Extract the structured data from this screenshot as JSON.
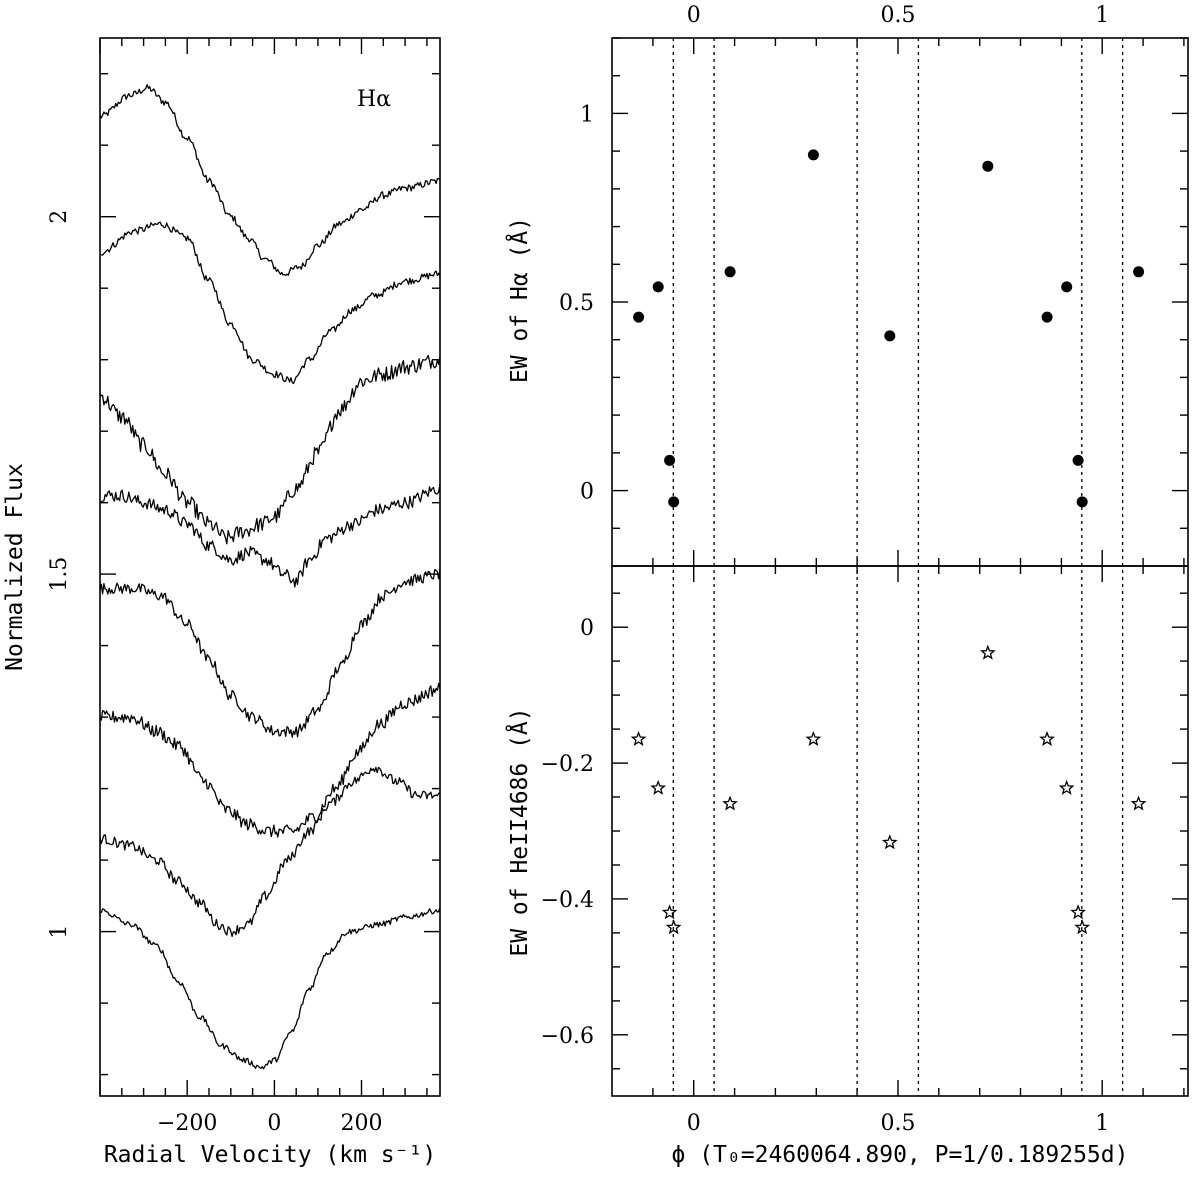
{
  "chart_data": [
    {
      "type": "line",
      "panel": "left",
      "annotation": "Hα",
      "xlabel": "Radial Velocity (km s⁻¹)",
      "ylabel": "Normalized Flux",
      "xlim": [
        -400,
        380
      ],
      "ylim": [
        0.77,
        2.25
      ],
      "xticks": [
        -200,
        0,
        200
      ],
      "yticks": [
        1,
        1.5,
        2
      ],
      "yticklabels": [
        "1",
        "1.5",
        "2"
      ],
      "series": [
        {
          "name": "spectrum 1",
          "points": [
            [
              -400,
              2.14
            ],
            [
              -330,
              2.17
            ],
            [
              -290,
              2.18
            ],
            [
              -250,
              2.16
            ],
            [
              -200,
              2.11
            ],
            [
              -150,
              2.05
            ],
            [
              -100,
              2.0
            ],
            [
              -60,
              1.97
            ],
            [
              -20,
              1.94
            ],
            [
              20,
              1.92
            ],
            [
              60,
              1.93
            ],
            [
              100,
              1.96
            ],
            [
              150,
              1.99
            ],
            [
              200,
              2.01
            ],
            [
              250,
              2.03
            ],
            [
              300,
              2.04
            ],
            [
              380,
              2.05
            ]
          ]
        },
        {
          "name": "spectrum 2",
          "points": [
            [
              -400,
              1.95
            ],
            [
              -320,
              1.98
            ],
            [
              -260,
              1.99
            ],
            [
              -200,
              1.97
            ],
            [
              -150,
              1.91
            ],
            [
              -100,
              1.85
            ],
            [
              -50,
              1.8
            ],
            [
              0,
              1.78
            ],
            [
              40,
              1.77
            ],
            [
              80,
              1.8
            ],
            [
              130,
              1.84
            ],
            [
              180,
              1.87
            ],
            [
              230,
              1.89
            ],
            [
              300,
              1.91
            ],
            [
              380,
              1.92
            ]
          ]
        },
        {
          "name": "spectrum 3",
          "points": [
            [
              -400,
              1.75
            ],
            [
              -350,
              1.72
            ],
            [
              -300,
              1.68
            ],
            [
              -250,
              1.64
            ],
            [
              -200,
              1.6
            ],
            [
              -150,
              1.57
            ],
            [
              -110,
              1.55
            ],
            [
              -70,
              1.56
            ],
            [
              -30,
              1.57
            ],
            [
              0,
              1.58
            ],
            [
              50,
              1.62
            ],
            [
              100,
              1.67
            ],
            [
              150,
              1.73
            ],
            [
              200,
              1.77
            ],
            [
              250,
              1.78
            ],
            [
              300,
              1.79
            ],
            [
              380,
              1.8
            ]
          ]
        },
        {
          "name": "spectrum 4",
          "points": [
            [
              -400,
              1.61
            ],
            [
              -350,
              1.61
            ],
            [
              -300,
              1.6
            ],
            [
              -250,
              1.59
            ],
            [
              -200,
              1.57
            ],
            [
              -150,
              1.54
            ],
            [
              -100,
              1.52
            ],
            [
              -60,
              1.53
            ],
            [
              -20,
              1.52
            ],
            [
              20,
              1.5
            ],
            [
              50,
              1.49
            ],
            [
              80,
              1.52
            ],
            [
              120,
              1.55
            ],
            [
              180,
              1.57
            ],
            [
              240,
              1.59
            ],
            [
              300,
              1.6
            ],
            [
              380,
              1.62
            ]
          ]
        },
        {
          "name": "spectrum 5",
          "points": [
            [
              -400,
              1.48
            ],
            [
              -320,
              1.48
            ],
            [
              -260,
              1.47
            ],
            [
              -200,
              1.43
            ],
            [
              -150,
              1.38
            ],
            [
              -100,
              1.33
            ],
            [
              -50,
              1.3
            ],
            [
              0,
              1.28
            ],
            [
              50,
              1.28
            ],
            [
              100,
              1.31
            ],
            [
              150,
              1.37
            ],
            [
              200,
              1.43
            ],
            [
              250,
              1.47
            ],
            [
              300,
              1.49
            ],
            [
              380,
              1.5
            ]
          ]
        },
        {
          "name": "spectrum 6",
          "points": [
            [
              -400,
              1.3
            ],
            [
              -330,
              1.3
            ],
            [
              -270,
              1.28
            ],
            [
              -220,
              1.26
            ],
            [
              -160,
              1.21
            ],
            [
              -110,
              1.17
            ],
            [
              -60,
              1.15
            ],
            [
              -10,
              1.14
            ],
            [
              40,
              1.14
            ],
            [
              90,
              1.16
            ],
            [
              140,
              1.2
            ],
            [
              190,
              1.25
            ],
            [
              240,
              1.29
            ],
            [
              300,
              1.32
            ],
            [
              380,
              1.34
            ]
          ]
        },
        {
          "name": "spectrum 7",
          "points": [
            [
              -400,
              1.13
            ],
            [
              -330,
              1.12
            ],
            [
              -270,
              1.1
            ],
            [
              -220,
              1.07
            ],
            [
              -170,
              1.04
            ],
            [
              -130,
              1.01
            ],
            [
              -100,
              1.0
            ],
            [
              -60,
              1.01
            ],
            [
              -20,
              1.05
            ],
            [
              30,
              1.1
            ],
            [
              80,
              1.14
            ],
            [
              130,
              1.18
            ],
            [
              180,
              1.21
            ],
            [
              230,
              1.23
            ],
            [
              280,
              1.21
            ],
            [
              330,
              1.19
            ],
            [
              380,
              1.19
            ]
          ]
        },
        {
          "name": "spectrum 8",
          "points": [
            [
              -400,
              1.03
            ],
            [
              -330,
              1.01
            ],
            [
              -270,
              0.98
            ],
            [
              -220,
              0.93
            ],
            [
              -170,
              0.88
            ],
            [
              -120,
              0.84
            ],
            [
              -70,
              0.82
            ],
            [
              -30,
              0.81
            ],
            [
              0,
              0.82
            ],
            [
              40,
              0.86
            ],
            [
              80,
              0.92
            ],
            [
              120,
              0.97
            ],
            [
              170,
              1.0
            ],
            [
              240,
              1.01
            ],
            [
              300,
              1.02
            ],
            [
              380,
              1.03
            ]
          ]
        }
      ]
    },
    {
      "type": "scatter",
      "panel": "right-top",
      "ylabel": "EW of Hα (Å)",
      "xlim": [
        -0.2,
        1.21
      ],
      "ylim": [
        -0.2,
        1.2
      ],
      "xticks": [
        0,
        0.5,
        1
      ],
      "xticklabels": [
        "0",
        "0.5",
        "1"
      ],
      "yticks": [
        0,
        0.5,
        1
      ],
      "yticklabels": [
        "0",
        "0.5",
        "1"
      ],
      "marker": "filled-circle",
      "x": [
        -0.135,
        -0.087,
        -0.059,
        -0.049,
        0.089,
        0.293,
        0.48,
        0.72,
        0.865,
        0.913,
        0.941,
        0.951,
        1.089
      ],
      "y": [
        0.46,
        0.54,
        0.08,
        -0.03,
        0.58,
        0.89,
        0.41,
        0.86,
        0.46,
        0.54,
        0.08,
        -0.03,
        0.58
      ]
    },
    {
      "type": "scatter",
      "panel": "right-bottom",
      "ylabel": "EW of HeII4686 (Å)",
      "xlabel": "ϕ (T₀=2460064.890, P=1/0.189255d)",
      "xlim": [
        -0.2,
        1.21
      ],
      "ylim": [
        -0.69,
        0.09
      ],
      "xticks": [
        0,
        0.5,
        1
      ],
      "xticklabels": [
        "0",
        "0.5",
        "1"
      ],
      "yticks": [
        0,
        -0.2,
        -0.4,
        -0.6
      ],
      "yticklabels": [
        "0",
        "−0.2",
        "−0.4",
        "−0.6"
      ],
      "marker": "open-star",
      "x": [
        -0.135,
        -0.087,
        -0.059,
        -0.049,
        0.089,
        0.293,
        0.48,
        0.72,
        0.865,
        0.913,
        0.941,
        0.951,
        1.089
      ],
      "y": [
        -0.165,
        -0.237,
        -0.42,
        -0.442,
        -0.26,
        -0.165,
        -0.317,
        -0.038,
        -0.165,
        -0.237,
        -0.42,
        -0.442,
        -0.26
      ]
    },
    {
      "type": "reference-lines",
      "panel": "right",
      "description_values": [
        -0.05,
        0.05,
        0.4,
        0.55,
        0.95,
        1.05
      ]
    }
  ]
}
